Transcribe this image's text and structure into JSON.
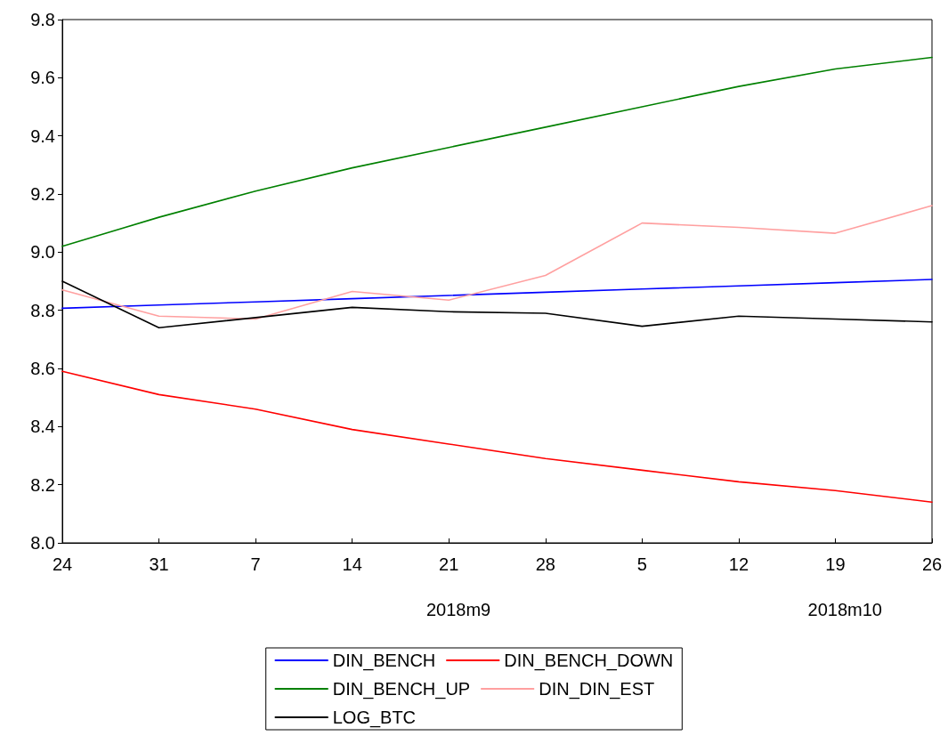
{
  "chart_data": {
    "type": "line",
    "categories": [
      "24",
      "31",
      "7",
      "14",
      "21",
      "28",
      "5",
      "12",
      "19",
      "26"
    ],
    "series": [
      {
        "name": "DIN_BENCH",
        "color": "#0000ff",
        "values": [
          8.807,
          8.818,
          8.829,
          8.84,
          8.851,
          8.862,
          8.873,
          8.884,
          8.895,
          8.906
        ]
      },
      {
        "name": "DIN_BENCH_DOWN",
        "color": "#ff0000",
        "values": [
          8.59,
          8.51,
          8.46,
          8.39,
          8.34,
          8.29,
          8.25,
          8.21,
          8.18,
          8.14
        ]
      },
      {
        "name": "DIN_BENCH_UP",
        "color": "#008000",
        "values": [
          9.02,
          9.12,
          9.21,
          9.29,
          9.36,
          9.43,
          9.5,
          9.57,
          9.63,
          9.67
        ]
      },
      {
        "name": "DIN_DIN_EST",
        "color": "#ffa0a0",
        "values": [
          8.87,
          8.78,
          8.77,
          8.865,
          8.835,
          8.92,
          9.1,
          9.085,
          9.065,
          9.16
        ]
      },
      {
        "name": "LOG_BTC",
        "color": "#000000",
        "values": [
          8.9,
          8.74,
          8.775,
          8.81,
          8.795,
          8.79,
          8.745,
          8.78,
          8.77,
          8.76
        ]
      }
    ],
    "ylim": [
      8.0,
      9.8
    ],
    "yticks": [
      {
        "value": 8.0,
        "label": "8.0"
      },
      8.2,
      8.4,
      8.6,
      8.8,
      {
        "value": 9.0,
        "label": "9.0"
      },
      9.2,
      9.4,
      9.6,
      9.8
    ],
    "annotations": [
      "2018m9",
      "2018m10"
    ],
    "legend": "bottom",
    "grid": false,
    "marker": "none",
    "line_style": "solid"
  }
}
